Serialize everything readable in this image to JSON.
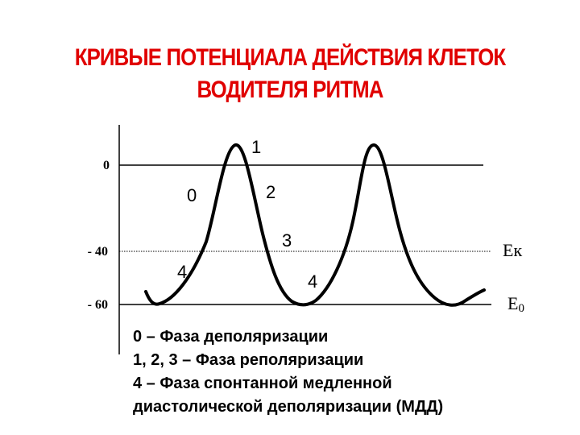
{
  "title": {
    "line1": "КРИВЫЕ ПОТЕНЦИАЛА ДЕЙСТВИЯ КЛЕТОК",
    "line2": "ВОДИТЕЛЯ РИТМА"
  },
  "colors": {
    "title": "#e00000",
    "curve": "#000000",
    "lines": "#000000"
  },
  "axis": {
    "tick_0": "0",
    "tick_40": "- 40",
    "tick_60": "- 60"
  },
  "phase_labels": {
    "p0": "0",
    "p1": "1",
    "p2": "2",
    "p3": "3",
    "p4a": "4",
    "p4b": "4"
  },
  "levels": {
    "ek": "Eк",
    "e0": "E",
    "e0_sub": "0"
  },
  "legend": [
    "0 – Фаза деполяризации",
    "1, 2, 3 – Фаза   реполяризации",
    "4 – Фаза спонтанной медленной",
    " диастолической   деполяризации (МДД)"
  ]
}
